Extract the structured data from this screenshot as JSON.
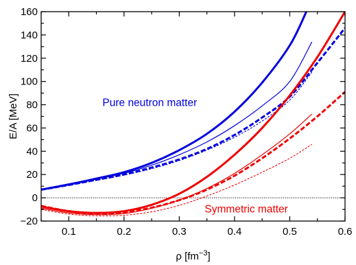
{
  "chart_data": {
    "type": "line",
    "xlabel": "ρ [fm",
    "xlabel_sup": "−3",
    "xlabel_end": "]",
    "ylabel": "E/A [MeV]",
    "xlim": [
      0.05,
      0.6
    ],
    "ylim": [
      -20,
      160
    ],
    "x_ticks": [
      0.1,
      0.2,
      0.3,
      0.4,
      0.5,
      0.6
    ],
    "x_tick_labels": [
      "0.1",
      "0.2",
      "0.3",
      "0.4",
      "0.5",
      "0.6"
    ],
    "y_ticks": [
      -20,
      0,
      20,
      40,
      60,
      80,
      100,
      120,
      140,
      160
    ],
    "y_tick_labels": [
      "−20",
      "0",
      "20",
      "40",
      "60",
      "80",
      "100",
      "120",
      "140",
      "160"
    ],
    "x_minor_step": 0.05,
    "y_minor_step": 10,
    "zero_line": {
      "y": 0,
      "style": "dotted",
      "color": "#000000"
    },
    "colors": {
      "neutron": "#0000dd",
      "symmetric": "#ee0000"
    },
    "annotations": [
      {
        "name": "pure-neutron-matter-label",
        "text": "Pure neutron matter",
        "x": 0.161,
        "y": 79,
        "color": "#0000dd"
      },
      {
        "name": "symmetric-matter-label",
        "text": "Symmetric matter",
        "x": 0.346,
        "y": -12.6,
        "color": "#ee0000"
      }
    ],
    "series": [
      {
        "group": "neutron",
        "style": "thick-solid",
        "x": [
          0.05,
          0.1,
          0.15,
          0.2,
          0.25,
          0.3,
          0.35,
          0.4,
          0.45,
          0.5,
          0.53
        ],
        "y": [
          7,
          11.5,
          16.5,
          22,
          30,
          41,
          55,
          74,
          99,
          131,
          160
        ]
      },
      {
        "group": "neutron",
        "style": "thin-solid",
        "x": [
          0.05,
          0.1,
          0.15,
          0.2,
          0.25,
          0.3,
          0.35,
          0.4,
          0.45,
          0.5,
          0.54
        ],
        "y": [
          7,
          11.2,
          16,
          21,
          28,
          37,
          48,
          62,
          79,
          100,
          134
        ]
      },
      {
        "group": "neutron",
        "style": "thick-dashed",
        "x": [
          0.05,
          0.1,
          0.15,
          0.2,
          0.25,
          0.3,
          0.35,
          0.4,
          0.45,
          0.5,
          0.55,
          0.6
        ],
        "y": [
          7,
          11,
          15.5,
          20,
          26,
          33,
          42,
          54,
          69,
          87,
          116,
          146
        ]
      },
      {
        "group": "neutron",
        "style": "thin-dashed",
        "x": [
          0.05,
          0.1,
          0.15,
          0.2,
          0.25,
          0.3,
          0.35,
          0.4,
          0.45,
          0.5,
          0.54
        ],
        "y": [
          7,
          10.8,
          15,
          19.5,
          25,
          32,
          41,
          52,
          66,
          84,
          108
        ]
      },
      {
        "group": "symmetric",
        "style": "thick-solid",
        "x": [
          0.05,
          0.1,
          0.15,
          0.2,
          0.25,
          0.3,
          0.35,
          0.4,
          0.45,
          0.5,
          0.55,
          0.6
        ],
        "y": [
          -7.5,
          -11.5,
          -13,
          -11.5,
          -6,
          3.5,
          18,
          37,
          60,
          88,
          121,
          160
        ]
      },
      {
        "group": "symmetric",
        "style": "thin-solid",
        "x": [
          0.05,
          0.1,
          0.15,
          0.2,
          0.25,
          0.3,
          0.35,
          0.4,
          0.45,
          0.5,
          0.54
        ],
        "y": [
          -9,
          -13,
          -14.5,
          -13.5,
          -9,
          -2,
          8,
          21,
          37,
          55,
          72
        ]
      },
      {
        "group": "symmetric",
        "style": "thick-dashed",
        "x": [
          0.05,
          0.1,
          0.15,
          0.2,
          0.25,
          0.3,
          0.35,
          0.4,
          0.45,
          0.5,
          0.55,
          0.6
        ],
        "y": [
          -7,
          -11.5,
          -13.5,
          -12.5,
          -8.5,
          -2,
          7,
          19,
          34,
          51,
          70,
          91
        ]
      },
      {
        "group": "symmetric",
        "style": "thin-dashed",
        "x": [
          0.05,
          0.1,
          0.15,
          0.2,
          0.25,
          0.3,
          0.35,
          0.4,
          0.45,
          0.5,
          0.54
        ],
        "y": [
          -10,
          -14,
          -15.5,
          -15,
          -12,
          -6.5,
          1.5,
          11,
          22,
          34,
          46
        ]
      }
    ]
  }
}
